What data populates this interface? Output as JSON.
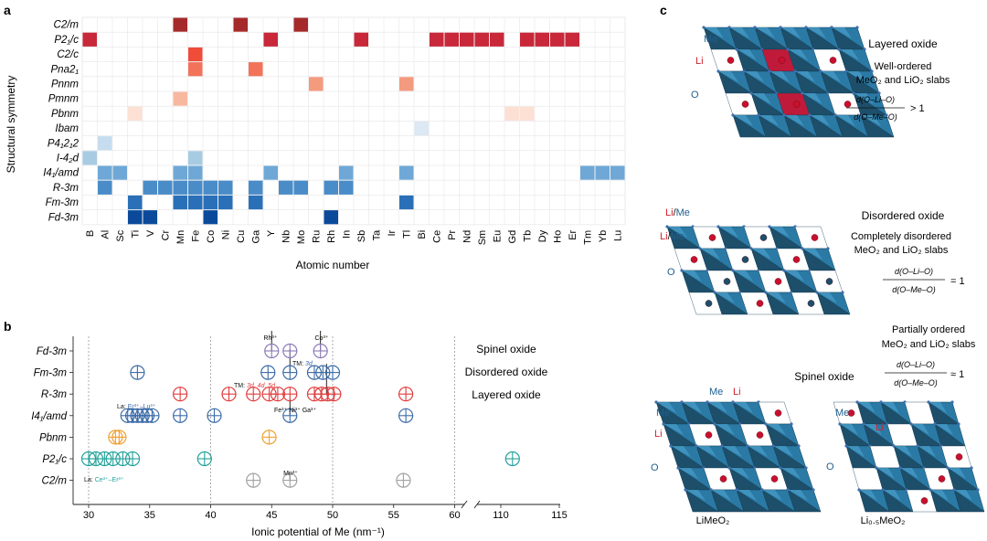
{
  "panel_labels": {
    "a": "a",
    "b": "b",
    "c": "c"
  },
  "chart_data": [
    {
      "type": "heatmap",
      "panel": "a",
      "ylabel": "Structural symmetry",
      "xlabel": "Atomic number",
      "rows": [
        "C2/m",
        "P2₁/c",
        "C2/c",
        "Pna2₁",
        "Pnnm",
        "Pmnm",
        "Pbnm",
        "Ibam",
        "P4₁2₁2",
        "I-4₂d",
        "I4₁/amd",
        "R-3m",
        "Fm-3m",
        "Fd-3m"
      ],
      "columns": [
        "B",
        "Al",
        "Sc",
        "Ti",
        "V",
        "Cr",
        "Mn",
        "Fe",
        "Co",
        "Ni",
        "Cu",
        "Ga",
        "Y",
        "Nb",
        "Mo",
        "Ru",
        "Rh",
        "In",
        "Sb",
        "Ta",
        "Ir",
        "Tl",
        "Bi",
        "Ce",
        "Pr",
        "Nd",
        "Sm",
        "Eu",
        "Gd",
        "Tb",
        "Dy",
        "Ho",
        "Er",
        "Tm",
        "Yb",
        "Lu"
      ],
      "cells": [
        [
          "C2/m",
          "Mn",
          "#a52a2a"
        ],
        [
          "C2/m",
          "Cu",
          "#a52a2a"
        ],
        [
          "C2/m",
          "Mo",
          "#a52a2a"
        ],
        [
          "P2₁/c",
          "B",
          "#c8283a"
        ],
        [
          "P2₁/c",
          "Y",
          "#c8283a"
        ],
        [
          "P2₁/c",
          "Sb",
          "#c8283a"
        ],
        [
          "P2₁/c",
          "Ce",
          "#c8283a"
        ],
        [
          "P2₁/c",
          "Pr",
          "#c8283a"
        ],
        [
          "P2₁/c",
          "Nd",
          "#c8283a"
        ],
        [
          "P2₁/c",
          "Sm",
          "#c8283a"
        ],
        [
          "P2₁/c",
          "Eu",
          "#c8283a"
        ],
        [
          "P2₁/c",
          "Tb",
          "#c8283a"
        ],
        [
          "P2₁/c",
          "Dy",
          "#c8283a"
        ],
        [
          "P2₁/c",
          "Ho",
          "#c8283a"
        ],
        [
          "P2₁/c",
          "Er",
          "#c8283a"
        ],
        [
          "C2/c",
          "Fe",
          "#ef4c3a"
        ],
        [
          "Pna2₁",
          "Fe",
          "#f2735a"
        ],
        [
          "Pna2₁",
          "Ga",
          "#f2735a"
        ],
        [
          "Pnnm",
          "Ru",
          "#f49a7e"
        ],
        [
          "Pnnm",
          "Tl",
          "#f49a7e"
        ],
        [
          "Pmnm",
          "Mn",
          "#f8b8a0"
        ],
        [
          "Pbnm",
          "Ti",
          "#fde0d4"
        ],
        [
          "Pbnm",
          "Gd",
          "#fde0d4"
        ],
        [
          "Pbnm",
          "Tb",
          "#fde0d4"
        ],
        [
          "Ibam",
          "Bi",
          "#dce8f4"
        ],
        [
          "P4₁2₁2",
          "Al",
          "#c6dcef"
        ],
        [
          "I-4₂d",
          "B",
          "#a8cbe4"
        ],
        [
          "I-4₂d",
          "Fe",
          "#a8cbe4"
        ],
        [
          "I4₁/amd",
          "Al",
          "#6fa8d6"
        ],
        [
          "I4₁/amd",
          "Sc",
          "#6fa8d6"
        ],
        [
          "I4₁/amd",
          "Mn",
          "#6fa8d6"
        ],
        [
          "I4₁/amd",
          "Fe",
          "#6fa8d6"
        ],
        [
          "I4₁/amd",
          "Y",
          "#6fa8d6"
        ],
        [
          "I4₁/amd",
          "In",
          "#6fa8d6"
        ],
        [
          "I4₁/amd",
          "Tl",
          "#6fa8d6"
        ],
        [
          "I4₁/amd",
          "Tm",
          "#6fa8d6"
        ],
        [
          "I4₁/amd",
          "Yb",
          "#6fa8d6"
        ],
        [
          "I4₁/amd",
          "Lu",
          "#6fa8d6"
        ],
        [
          "R-3m",
          "Al",
          "#4a8cc8"
        ],
        [
          "R-3m",
          "V",
          "#4a8cc8"
        ],
        [
          "R-3m",
          "Cr",
          "#4a8cc8"
        ],
        [
          "R-3m",
          "Mn",
          "#4a8cc8"
        ],
        [
          "R-3m",
          "Fe",
          "#4a8cc8"
        ],
        [
          "R-3m",
          "Co",
          "#4a8cc8"
        ],
        [
          "R-3m",
          "Ni",
          "#4a8cc8"
        ],
        [
          "R-3m",
          "Ga",
          "#4a8cc8"
        ],
        [
          "R-3m",
          "Nb",
          "#4a8cc8"
        ],
        [
          "R-3m",
          "Mo",
          "#4a8cc8"
        ],
        [
          "R-3m",
          "Rh",
          "#4a8cc8"
        ],
        [
          "R-3m",
          "In",
          "#4a8cc8"
        ],
        [
          "Fm-3m",
          "Ti",
          "#2a70b8"
        ],
        [
          "Fm-3m",
          "Mn",
          "#2a70b8"
        ],
        [
          "Fm-3m",
          "Fe",
          "#2a70b8"
        ],
        [
          "Fm-3m",
          "Co",
          "#2a70b8"
        ],
        [
          "Fm-3m",
          "Ni",
          "#2a70b8"
        ],
        [
          "Fm-3m",
          "Ga",
          "#2a70b8"
        ],
        [
          "Fm-3m",
          "Tl",
          "#2a70b8"
        ],
        [
          "Fd-3m",
          "Ti",
          "#0b4a9a"
        ],
        [
          "Fd-3m",
          "V",
          "#0b4a9a"
        ],
        [
          "Fd-3m",
          "Co",
          "#0b4a9a"
        ],
        [
          "Fd-3m",
          "Rh",
          "#0b4a9a"
        ]
      ]
    },
    {
      "type": "scatter",
      "panel": "b",
      "xlabel": "Ionic potential of Me (nm⁻¹)",
      "xticks": [
        "30",
        "35",
        "40",
        "45",
        "50",
        "55",
        "60",
        "110",
        "115"
      ],
      "categories": [
        "Fd-3m",
        "Fm-3m",
        "R-3m",
        "I4₁/amd",
        "Pbnm",
        "P2₁/c",
        "C2/m"
      ],
      "legend_right": [
        "Spinel oxide",
        "Disordered oxide",
        "Layered oxide"
      ],
      "series": [
        {
          "name": "Fd-3m",
          "color": "#8a7ab8",
          "x": [
            45,
            46.5,
            49
          ]
        },
        {
          "name": "Fm-3m",
          "color": "#3a6aa8",
          "x": [
            34,
            44.7,
            46.5,
            48.5,
            49.2,
            50
          ]
        },
        {
          "name": "R-3m",
          "color": "#e03a3a",
          "x": [
            37.5,
            41.5,
            43.5,
            44.8,
            45.5,
            46.5,
            48.5,
            49.1,
            49.6,
            50.1,
            56
          ]
        },
        {
          "name": "I4₁/amd",
          "color": "#3a6aa8",
          "x": [
            33.2,
            33.6,
            34,
            34.4,
            34.8,
            35.2,
            37.5,
            40.3,
            46.5,
            56
          ]
        },
        {
          "name": "Pbnm",
          "color": "#f0a030",
          "x": [
            32.2,
            32.5,
            44.8
          ]
        },
        {
          "name": "P2₁/c",
          "color": "#22a29a",
          "x": [
            30,
            30.6,
            31.3,
            32,
            32.8,
            33.6,
            39.5,
            111
          ]
        },
        {
          "name": "C2/m",
          "color": "#a0a0a0",
          "x": [
            43.5,
            46.5,
            55.8
          ]
        }
      ],
      "annotations": {
        "rh": "Rh³⁺",
        "co": "Co³⁺",
        "tm_3d": "TM: 3d",
        "tm_red_prefix": "TM: ",
        "tm_red_suffix": "3d, 4d, 5d",
        "la_blue_prefix": "La: ",
        "la_blue_suffix": "Er³⁺–Lu³⁺",
        "fe_ni_ga": "Fe³⁺ Ni³⁺ Ga³⁺",
        "mn": "Mn³⁺",
        "la_teal_prefix": "La: ",
        "la_teal_suffix": "Ce³⁺–Er³⁺"
      }
    }
  ],
  "panel_c": {
    "layered": {
      "title": "Layered oxide",
      "desc_1": "Well-ordered",
      "desc_2": "MeO₂ and LiO₂ slabs",
      "relation": "> 1",
      "me": "Me",
      "li": "Li",
      "o": "O"
    },
    "disordered": {
      "title": "Disordered oxide",
      "desc_1": "Completely disordered",
      "desc_2": "MeO₂ and LiO₂ slabs",
      "relation": "= 1",
      "li_me_1": "Li/Me",
      "li_me_2": "Li/Me",
      "o": "O"
    },
    "spinel": {
      "title": "Spinel oxide",
      "desc_1": "Partially ordered",
      "desc_2": "MeO₂ and LiO₂ slabs",
      "relation": "≈ 1",
      "me_top": "Me",
      "li_top": "Li",
      "me_left": "Me",
      "li_left": "Li",
      "o_left": "O",
      "me_right": "Me",
      "li_right": "Li",
      "o_right": "O",
      "caption_left": "LiMeO₂",
      "caption_right": "Li₀.₅MeO₂"
    },
    "ratio_num": "d(O–Li–O)",
    "ratio_den": "d(O–Me–O)"
  }
}
